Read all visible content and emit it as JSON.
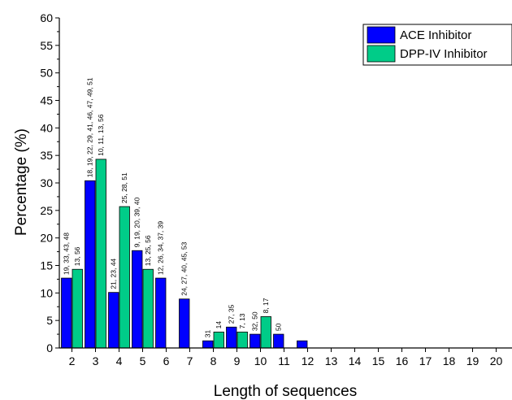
{
  "chart_data": {
    "type": "bar",
    "xlabel": "Length of sequences",
    "ylabel": "Percentage (%)",
    "ylim": [
      0,
      60
    ],
    "y_ticks": [
      "0",
      "5",
      "10",
      "15",
      "20",
      "25",
      "30",
      "35",
      "40",
      "45",
      "50",
      "55",
      "60"
    ],
    "categories": [
      "2",
      "3",
      "4",
      "5",
      "6",
      "7",
      "8",
      "9",
      "10",
      "11",
      "12",
      "13",
      "14",
      "15",
      "16",
      "17",
      "18",
      "19",
      "20"
    ],
    "grid": false,
    "legend_position": "top-right",
    "series": [
      {
        "name": "ACE Inhibitor",
        "color": "#0000ff",
        "values": [
          12.7,
          30.4,
          10.1,
          17.7,
          12.7,
          8.9,
          1.3,
          3.8,
          2.5,
          2.5,
          1.3,
          0,
          0,
          0,
          0,
          0,
          0,
          0,
          0
        ],
        "labels": [
          "19, 33, 43, 48",
          "18, 19, 22, 29, 41, 46, 47, 49, 51",
          "21, 23, 44",
          "9, 19, 20, 39, 40",
          "12, 26, 34, 37, 39",
          "24, 27, 40, 45, 53",
          "31",
          "27, 35",
          "32, 50",
          "50",
          "",
          "",
          "",
          "",
          "",
          "",
          "",
          "",
          ""
        ]
      },
      {
        "name": "DPP-IV Inhibitor",
        "color": "#00cc88",
        "values": [
          14.3,
          34.3,
          25.7,
          14.3,
          0,
          0,
          2.9,
          2.9,
          5.7,
          0,
          0,
          0,
          0,
          0,
          0,
          0,
          0,
          0,
          0
        ],
        "labels": [
          "13, 56",
          "10, 11, 13, 56",
          "25, 28, 51",
          "13, 25, 56",
          "",
          "",
          "14",
          "7, 13",
          "8, 17",
          "",
          "",
          "",
          "",
          "",
          "",
          "",
          "",
          "",
          ""
        ]
      }
    ]
  }
}
